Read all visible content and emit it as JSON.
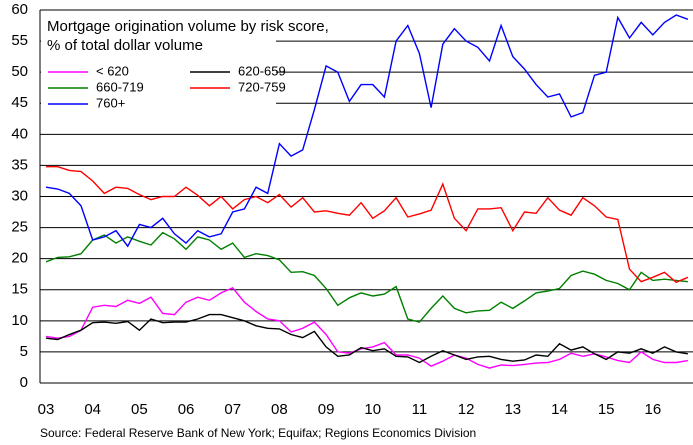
{
  "chart_data": {
    "type": "line",
    "title": "Mortgage origination volume by risk score,",
    "subtitle": "% of total dollar volume",
    "source": "Source: Federal Reserve Bank of New York; Equifax; Regions Economics Division",
    "categories": [
      "03",
      null,
      null,
      null,
      "04",
      null,
      null,
      null,
      "05",
      null,
      null,
      null,
      "06",
      null,
      null,
      null,
      "07",
      null,
      null,
      null,
      "08",
      null,
      null,
      null,
      "09",
      null,
      null,
      null,
      "10",
      null,
      null,
      null,
      "11",
      null,
      null,
      null,
      "12",
      null,
      null,
      null,
      "13",
      null,
      null,
      null,
      "14",
      null,
      null,
      null,
      "15",
      null,
      null,
      null,
      "16",
      null,
      null,
      null
    ],
    "ylim": [
      0,
      60
    ],
    "yticks": [
      0,
      5,
      10,
      15,
      20,
      25,
      30,
      35,
      40,
      45,
      50,
      55,
      60
    ],
    "grid": true,
    "series": [
      {
        "name": "< 620",
        "color": "#ff00ff",
        "values": [
          7.5,
          7.2,
          7.5,
          8.5,
          12.2,
          12.5,
          12.3,
          13.3,
          12.8,
          13.8,
          11.2,
          11,
          13,
          13.8,
          13.3,
          14.5,
          15.3,
          13,
          11.5,
          10.3,
          10,
          8.2,
          8.8,
          9.8,
          7.8,
          5,
          4.8,
          5.5,
          5.8,
          6.5,
          4.5,
          4.5,
          4,
          2.7,
          3.5,
          4.5,
          4,
          3,
          2.4,
          2.9,
          2.8,
          3,
          3.2,
          3.3,
          3.8,
          4.8,
          4.3,
          4.7,
          4.2,
          3.6,
          3.3,
          5,
          3.8,
          3.3,
          3.3,
          3.6
        ]
      },
      {
        "name": "620-659",
        "color": "#000000",
        "values": [
          7.2,
          7,
          7.8,
          8.5,
          9.7,
          9.8,
          9.6,
          9.9,
          8.5,
          10.3,
          9.7,
          9.8,
          9.8,
          10.3,
          11,
          11,
          10.5,
          10,
          9.2,
          8.8,
          8.7,
          7.8,
          7.3,
          8.3,
          5.8,
          4.3,
          4.5,
          5.7,
          5.2,
          5.5,
          4.3,
          4.2,
          3.3,
          4.3,
          5.2,
          4.5,
          3.8,
          4.2,
          4.3,
          3.8,
          3.5,
          3.7,
          4.5,
          4.3,
          6.3,
          5.3,
          5.8,
          4.7,
          3.8,
          5,
          4.8,
          5.5,
          4.8,
          5.8,
          5,
          4.7
        ]
      },
      {
        "name": "660-719",
        "color": "#008000",
        "values": [
          19.5,
          20.2,
          20.3,
          20.8,
          23,
          23.8,
          22.5,
          23.5,
          22.8,
          22.2,
          24.2,
          23.2,
          21.5,
          23.5,
          23,
          21.5,
          22.5,
          20.2,
          20.8,
          20.5,
          19.8,
          17.8,
          17.9,
          17.3,
          15.2,
          12.5,
          13.7,
          14.5,
          14,
          14.3,
          15.5,
          10.3,
          9.8,
          12,
          14,
          12,
          11.3,
          11.6,
          11.7,
          13,
          12,
          13.2,
          14.5,
          14.8,
          15.2,
          17.3,
          18,
          17.5,
          16.5,
          16,
          15,
          17.8,
          16.5,
          16.7,
          16.5,
          16.3
        ]
      },
      {
        "name": "720-759",
        "color": "#ff0000",
        "values": [
          34.8,
          34.8,
          34.2,
          34,
          32.5,
          30.5,
          31.5,
          31.3,
          30.3,
          29.5,
          30,
          30,
          31.5,
          30.2,
          28.5,
          30,
          28,
          29.5,
          30,
          29,
          30.3,
          28.3,
          29.8,
          27.5,
          27.7,
          27.3,
          27,
          29,
          26.5,
          27.7,
          29.8,
          26.7,
          27.2,
          27.8,
          32,
          26.5,
          24.5,
          28,
          28,
          28.2,
          24.5,
          27.5,
          27.3,
          29.8,
          27.8,
          27,
          29.8,
          28.5,
          26.7,
          26.3,
          18.3,
          16.3,
          17,
          17.8,
          16.2,
          17
        ]
      },
      {
        "name": "760+",
        "color": "#0000ff",
        "values": [
          31.5,
          31.2,
          30.5,
          28.5,
          23,
          23.5,
          24.5,
          22,
          25.5,
          25,
          26.5,
          24,
          22.5,
          24.5,
          23.5,
          24,
          27.5,
          28,
          31.5,
          30.5,
          38.5,
          36.5,
          37.5,
          44,
          51,
          50,
          45.3,
          48,
          48,
          46,
          55,
          57.5,
          53,
          44.3,
          54.5,
          57,
          55,
          54,
          51.8,
          57.5,
          52.5,
          50.5,
          48,
          46,
          46.5,
          42.8,
          43.5,
          49.5,
          50,
          58.8,
          55.5,
          58,
          56,
          58,
          59.2,
          58.5
        ]
      }
    ]
  }
}
